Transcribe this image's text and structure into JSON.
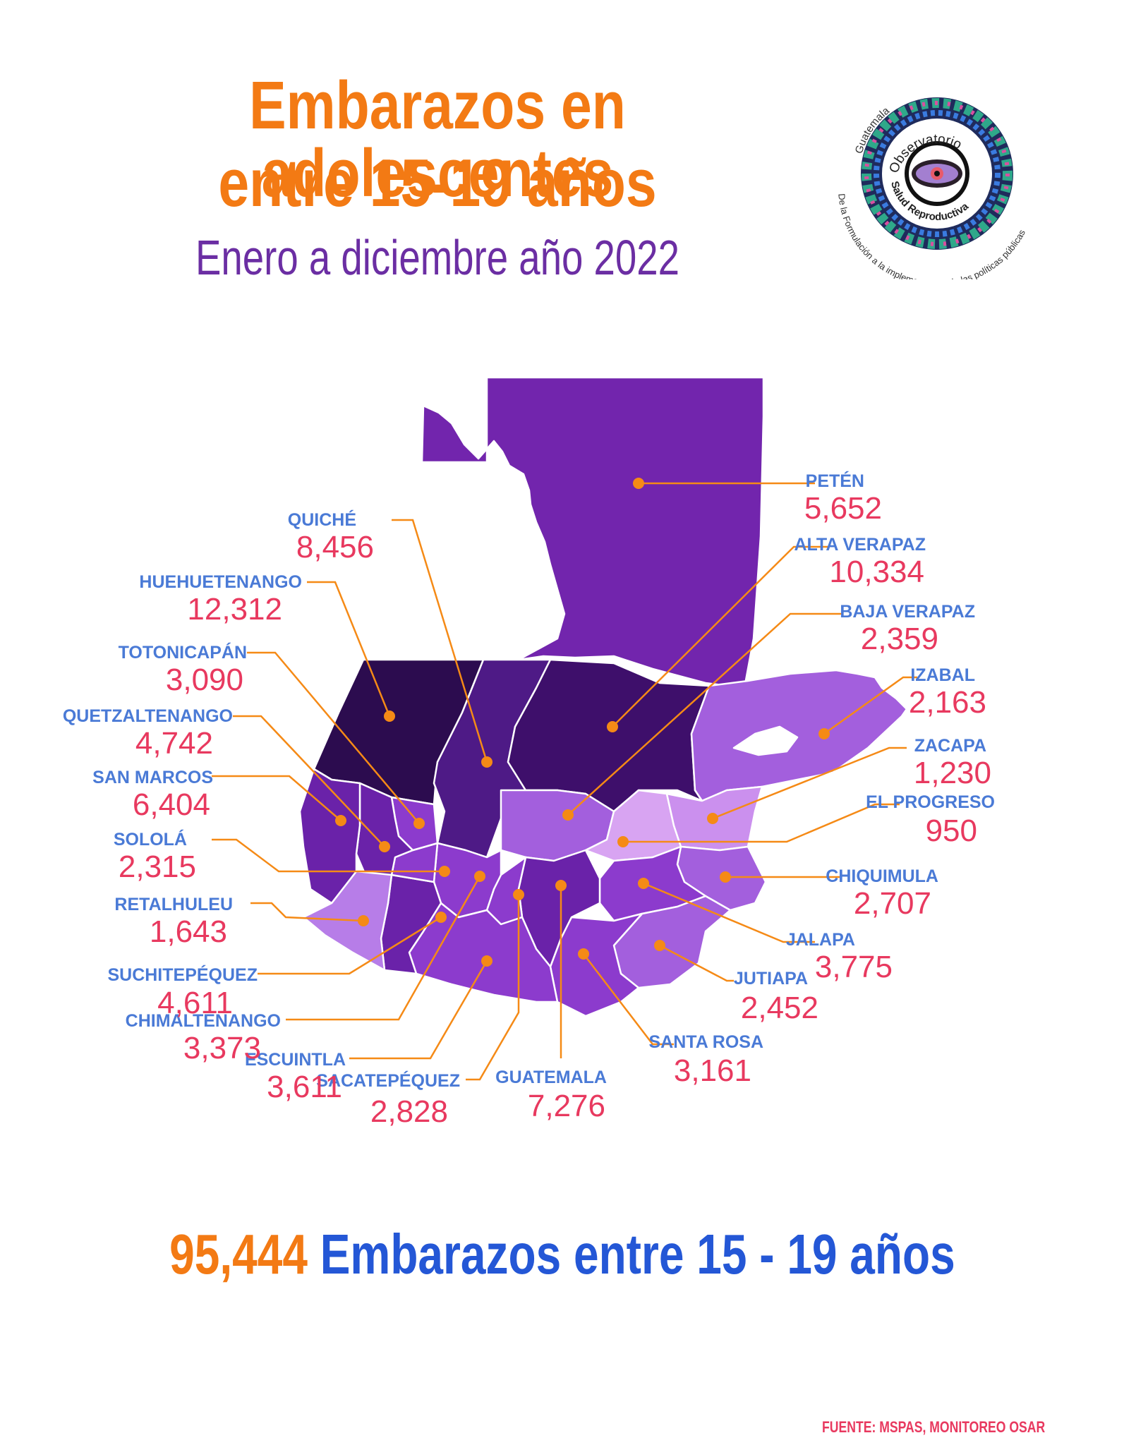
{
  "header": {
    "title_line1": "Embarazos en adolescentes",
    "title_line2": "entre 15-19 años",
    "subtitle": "Enero a diciembre año 2022"
  },
  "logo": {
    "top_text": "Guatemala",
    "line1": "Observatorio",
    "line2": "Salud Reproductiva",
    "bottom_text": "De la Formulación a la implementación de las políticas públicas"
  },
  "colors": {
    "title": "#f37a14",
    "subtitle": "#6b2ea3",
    "label_name": "#4a7ad6",
    "label_value": "#e8395f",
    "leader": "#f58a16",
    "total_text": "#2457d6"
  },
  "chart_data": {
    "type": "choropleth",
    "regions": [
      {
        "name": "PETÉN",
        "value": "5,652"
      },
      {
        "name": "ALTA VERAPAZ",
        "value": "10,334"
      },
      {
        "name": "BAJA VERAPAZ",
        "value": "2,359"
      },
      {
        "name": "IZABAL",
        "value": "2,163"
      },
      {
        "name": "ZACAPA",
        "value": "1,230"
      },
      {
        "name": "EL PROGRESO",
        "value": "950"
      },
      {
        "name": "CHIQUIMULA",
        "value": "2,707"
      },
      {
        "name": "JALAPA",
        "value": "3,775"
      },
      {
        "name": "JUTIAPA",
        "value": "2,452"
      },
      {
        "name": "SANTA ROSA",
        "value": "3,161"
      },
      {
        "name": "GUATEMALA",
        "value": "7,276"
      },
      {
        "name": "SACATEPÉQUEZ",
        "value": "2,828"
      },
      {
        "name": "ESCUINTLA",
        "value": "3,611"
      },
      {
        "name": "CHIMALTENANGO",
        "value": "3,373"
      },
      {
        "name": "SUCHITEPÉQUEZ",
        "value": "4,611"
      },
      {
        "name": "RETALHULEU",
        "value": "1,643"
      },
      {
        "name": "SOLOLÁ",
        "value": "2,315"
      },
      {
        "name": "SAN MARCOS",
        "value": "6,404"
      },
      {
        "name": "QUETZALTENANGO",
        "value": "4,742"
      },
      {
        "name": "TOTONICAPÁN",
        "value": "3,090"
      },
      {
        "name": "HUEHUETENANGO",
        "value": "12,312"
      },
      {
        "name": "QUICHÉ",
        "value": "8,456"
      }
    ]
  },
  "total": {
    "value": "95,444",
    "text": "Embarazos entre 15 - 19 años"
  },
  "source": "FUENTE: MSPAS, MONITOREO OSAR"
}
